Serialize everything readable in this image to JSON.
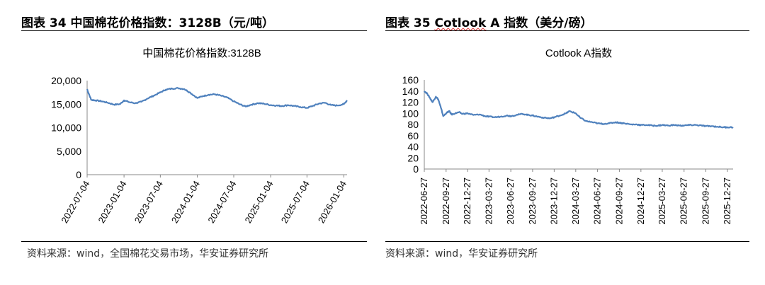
{
  "left": {
    "figure_title": "图表 34 中国棉花价格指数：3128B（元/吨）",
    "source": "资料来源：wind，全国棉花交易市场，华安证券研究所"
  },
  "right": {
    "figure_title_prefix": "图表 35 ",
    "figure_title_word": "Cotlook",
    "figure_title_suffix": " A 指数（美分/磅）",
    "source": "资料来源：wind，华安证券研究所"
  },
  "colors": {
    "line": "#4f81bd",
    "axis": "#888888",
    "rule": "#000000"
  },
  "chart_data": [
    {
      "type": "line",
      "title": "中国棉花价格指数:3128B",
      "yticks": [
        "0",
        "5,000",
        "10,000",
        "15,000",
        "20,000"
      ],
      "ylim": [
        0,
        20000
      ],
      "xticks": [
        "2022-07-04",
        "2023-01-04",
        "2023-07-04",
        "2024-01-04",
        "2024-07-04",
        "2025-01-04",
        "2025-07-04",
        "2026-01-04"
      ],
      "grid": false,
      "series": [
        {
          "x": [
            "2022-07-04",
            "2022-07-12",
            "2022-07-25",
            "2022-08-15",
            "2022-09-15",
            "2022-10-15",
            "2022-11-15",
            "2022-12-15",
            "2023-01-04",
            "2023-02-01",
            "2023-03-01",
            "2023-04-01",
            "2023-05-01",
            "2023-06-01",
            "2023-07-04",
            "2023-08-01",
            "2023-09-01",
            "2023-10-01",
            "2023-11-01",
            "2023-12-01",
            "2024-01-04",
            "2024-02-01",
            "2024-03-01",
            "2024-04-01",
            "2024-05-01",
            "2024-06-01",
            "2024-07-04",
            "2024-08-01",
            "2024-09-01",
            "2024-10-01",
            "2024-11-01",
            "2024-12-01",
            "2025-01-04",
            "2025-02-01",
            "2025-03-01",
            "2025-04-01",
            "2025-05-01",
            "2025-06-01",
            "2025-07-04",
            "2025-08-01",
            "2025-09-01",
            "2025-10-01",
            "2025-11-01",
            "2025-12-01",
            "2026-01-04",
            "2026-01-20"
          ],
          "values": [
            18200,
            17200,
            15900,
            15800,
            15600,
            15300,
            14900,
            15000,
            15800,
            15400,
            15200,
            15500,
            16200,
            16800,
            17500,
            18100,
            18300,
            18400,
            18200,
            17400,
            16300,
            16700,
            17000,
            17100,
            16800,
            16400,
            15600,
            15000,
            14500,
            14900,
            15200,
            15100,
            14800,
            14700,
            14600,
            14800,
            14600,
            14400,
            14200,
            14600,
            15100,
            15300,
            14800,
            14700,
            15000,
            15800
          ]
        }
      ]
    },
    {
      "type": "line",
      "title": "Cotlook A指数",
      "yticks": [
        "0",
        "20",
        "40",
        "60",
        "80",
        "100",
        "120",
        "140",
        "160"
      ],
      "ylim": [
        0,
        160
      ],
      "xticks": [
        "2022-06-27",
        "2022-09-27",
        "2022-12-27",
        "2023-03-27",
        "2023-06-27",
        "2023-09-27",
        "2023-12-27",
        "2024-03-27",
        "2024-06-27",
        "2024-09-27",
        "2024-12-27",
        "2025-03-27",
        "2025-06-27",
        "2025-09-27",
        "2025-12-27"
      ],
      "grid": false,
      "series": [
        {
          "x": [
            "2022-06-27",
            "2022-07-10",
            "2022-07-20",
            "2022-08-01",
            "2022-08-15",
            "2022-08-25",
            "2022-09-05",
            "2022-09-15",
            "2022-09-27",
            "2022-10-10",
            "2022-10-20",
            "2022-11-05",
            "2022-11-20",
            "2022-12-05",
            "2022-12-27",
            "2023-01-20",
            "2023-02-15",
            "2023-03-10",
            "2023-03-27",
            "2023-04-20",
            "2023-05-15",
            "2023-06-10",
            "2023-06-27",
            "2023-07-20",
            "2023-08-15",
            "2023-09-10",
            "2023-09-27",
            "2023-10-20",
            "2023-11-15",
            "2023-12-10",
            "2023-12-27",
            "2024-01-20",
            "2024-02-15",
            "2024-03-01",
            "2024-03-27",
            "2024-04-15",
            "2024-05-10",
            "2024-06-05",
            "2024-06-27",
            "2024-07-20",
            "2024-08-15",
            "2024-09-10",
            "2024-09-27",
            "2024-10-20",
            "2024-11-15",
            "2024-12-10",
            "2024-12-27",
            "2025-01-20",
            "2025-02-15",
            "2025-03-10",
            "2025-03-27",
            "2025-04-20",
            "2025-05-15",
            "2025-06-10",
            "2025-06-27",
            "2025-07-20",
            "2025-08-15",
            "2025-09-10",
            "2025-09-27",
            "2025-10-20",
            "2025-11-15",
            "2025-12-10",
            "2025-12-27",
            "2026-01-20"
          ],
          "values": [
            140,
            135,
            128,
            120,
            130,
            125,
            110,
            95,
            100,
            104,
            98,
            100,
            102,
            99,
            100,
            97,
            98,
            95,
            94,
            93,
            94,
            96,
            95,
            97,
            99,
            97,
            96,
            94,
            92,
            91,
            93,
            96,
            100,
            104,
            100,
            92,
            86,
            84,
            82,
            81,
            82,
            84,
            83,
            82,
            80,
            80,
            79,
            79,
            78,
            78,
            79,
            78,
            79,
            78,
            78,
            79,
            79,
            78,
            77,
            77,
            76,
            75,
            75,
            75
          ]
        }
      ]
    }
  ]
}
